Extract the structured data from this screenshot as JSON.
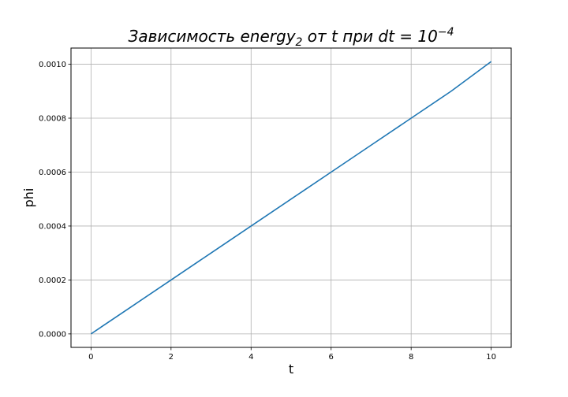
{
  "chart_data": {
    "type": "line",
    "title": {
      "prefix": "Зависимость energy",
      "subscript": "2",
      "middle": " от t при dt = 10",
      "superscript": "−4"
    },
    "xlabel": "t",
    "ylabel": "phi",
    "xlim": [
      -0.5,
      10.5
    ],
    "ylim": [
      -5e-05,
      0.00106
    ],
    "xticks": [
      0,
      2,
      4,
      6,
      8,
      10
    ],
    "xtick_labels": [
      "0",
      "2",
      "4",
      "6",
      "8",
      "10"
    ],
    "yticks": [
      0.0,
      0.0002,
      0.0004,
      0.0006,
      0.0008,
      0.001
    ],
    "ytick_labels": [
      "0.0000",
      "0.0002",
      "0.0004",
      "0.0006",
      "0.0008",
      "0.0010"
    ],
    "grid": true,
    "series": [
      {
        "color": "#1f77b4",
        "x": [
          0,
          1,
          2,
          3,
          4,
          5,
          6,
          7,
          8,
          9,
          10
        ],
        "y": [
          0.0,
          0.0001,
          0.0002,
          0.0003,
          0.0004,
          0.0005,
          0.0006,
          0.0007,
          0.0008,
          0.0009,
          0.00101
        ]
      }
    ]
  }
}
